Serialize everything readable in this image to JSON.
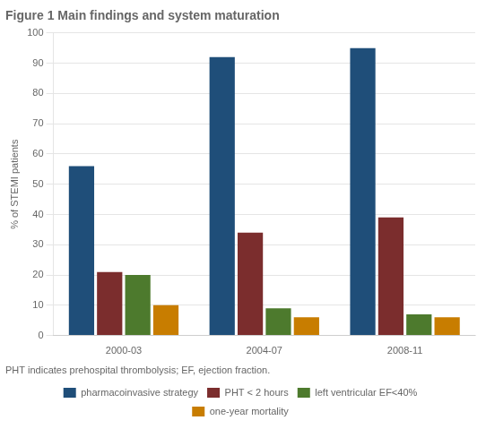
{
  "chart_data": {
    "type": "bar",
    "title": "Figure 1 Main findings and system maturation",
    "ylabel": "% of STEMI patients",
    "footnote": "PHT indicates prehospital thrombolysis; EF, ejection fraction.",
    "categories": [
      "2000-03",
      "2004-07",
      "2008-11"
    ],
    "series": [
      {
        "name": "pharmacoinvasive strategy",
        "color": "#1f4e79",
        "values": [
          56,
          92,
          95
        ]
      },
      {
        "name": "PHT < 2 hours",
        "color": "#7b2d2d",
        "values": [
          21,
          34,
          39
        ]
      },
      {
        "name": "left ventricular EF<40%",
        "color": "#4d7a2d",
        "values": [
          20,
          9,
          7
        ]
      },
      {
        "name": "one-year mortality",
        "color": "#c87d00",
        "values": [
          10,
          6,
          6
        ]
      }
    ],
    "ylim": [
      0,
      100
    ],
    "yticks": [
      0,
      10,
      20,
      30,
      40,
      50,
      60,
      70,
      80,
      90,
      100
    ],
    "grid": true,
    "legend": "bottom"
  }
}
